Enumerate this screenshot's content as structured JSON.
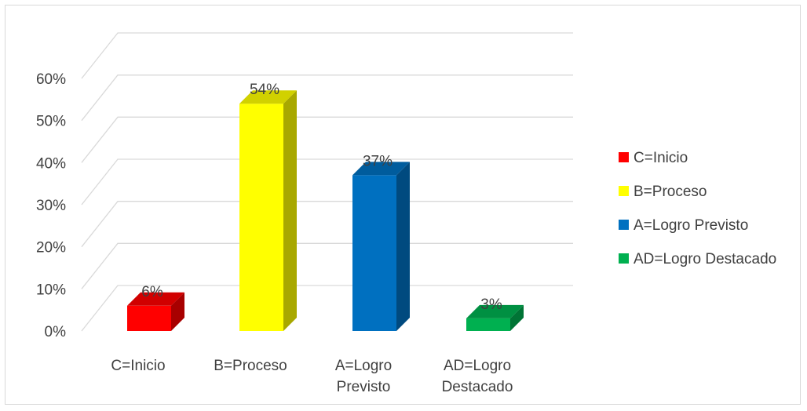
{
  "chart_data": {
    "type": "bar",
    "style": "3d-column",
    "categories": [
      [
        "C=Inicio"
      ],
      [
        "B=Proceso"
      ],
      [
        "A=Logro",
        "Previsto"
      ],
      [
        "AD=Logro",
        "Destacado"
      ]
    ],
    "values": [
      6,
      54,
      37,
      3
    ],
    "data_labels": [
      "6%",
      "54%",
      "37%",
      "3%"
    ],
    "colors": [
      "#ff0000",
      "#ffff00",
      "#0070c0",
      "#00b050"
    ],
    "yticks": [
      "0%",
      "10%",
      "20%",
      "30%",
      "40%",
      "50%",
      "60%"
    ],
    "ylim": [
      0,
      60
    ],
    "grid": true,
    "legend": {
      "placement": "right",
      "entries": [
        "C=Inicio",
        "B=Proceso",
        "A=Logro Previsto",
        "AD=Logro Destacado"
      ]
    }
  }
}
